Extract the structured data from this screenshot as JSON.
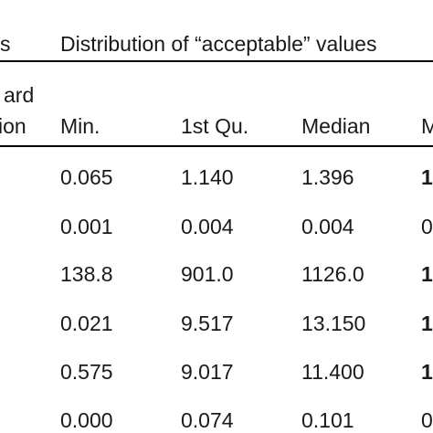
{
  "table": {
    "header_left_fragment": "s",
    "group_header": "Distribution of “acceptable” values",
    "std_header_line1": "ard",
    "std_header_line2": "ion",
    "columns": [
      "Min.",
      "1st Qu.",
      "Median",
      "M"
    ],
    "rows": [
      {
        "min": "0.065",
        "q1": "1.140",
        "median": "1.396",
        "mean_frag": "1"
      },
      {
        "min": "0.001",
        "q1": "0.004",
        "median": "0.004",
        "mean_frag": "0"
      },
      {
        "min": "138.8",
        "q1": "901.0",
        "median": "1126.0",
        "mean_frag": "1"
      },
      {
        "min": "0.021",
        "q1": "9.517",
        "median": "13.150",
        "mean_frag": "1"
      },
      {
        "min": "0.575",
        "q1": "9.017",
        "median": "11.400",
        "mean_frag": "1"
      },
      {
        "min": "0.000",
        "q1": "0.074",
        "median": "0.101",
        "mean_frag": "0"
      }
    ]
  }
}
